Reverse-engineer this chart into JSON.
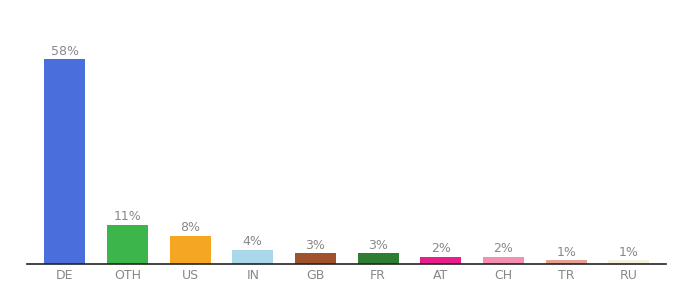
{
  "categories": [
    "DE",
    "OTH",
    "US",
    "IN",
    "GB",
    "FR",
    "AT",
    "CH",
    "TR",
    "RU"
  ],
  "values": [
    58,
    11,
    8,
    4,
    3,
    3,
    2,
    2,
    1,
    1
  ],
  "bar_colors": [
    "#4a6fdc",
    "#3cb54a",
    "#f5a623",
    "#a8d8ea",
    "#a0522d",
    "#2e7d32",
    "#e91e8c",
    "#f48fb1",
    "#e8a090",
    "#f5f0dc"
  ],
  "label_color": "#888888",
  "ylim": [
    0,
    68
  ],
  "bar_width": 0.65,
  "label_fontsize": 9,
  "tick_fontsize": 9,
  "x_tick_color": "#888888",
  "spine_color": "#222222",
  "background_color": "#ffffff"
}
